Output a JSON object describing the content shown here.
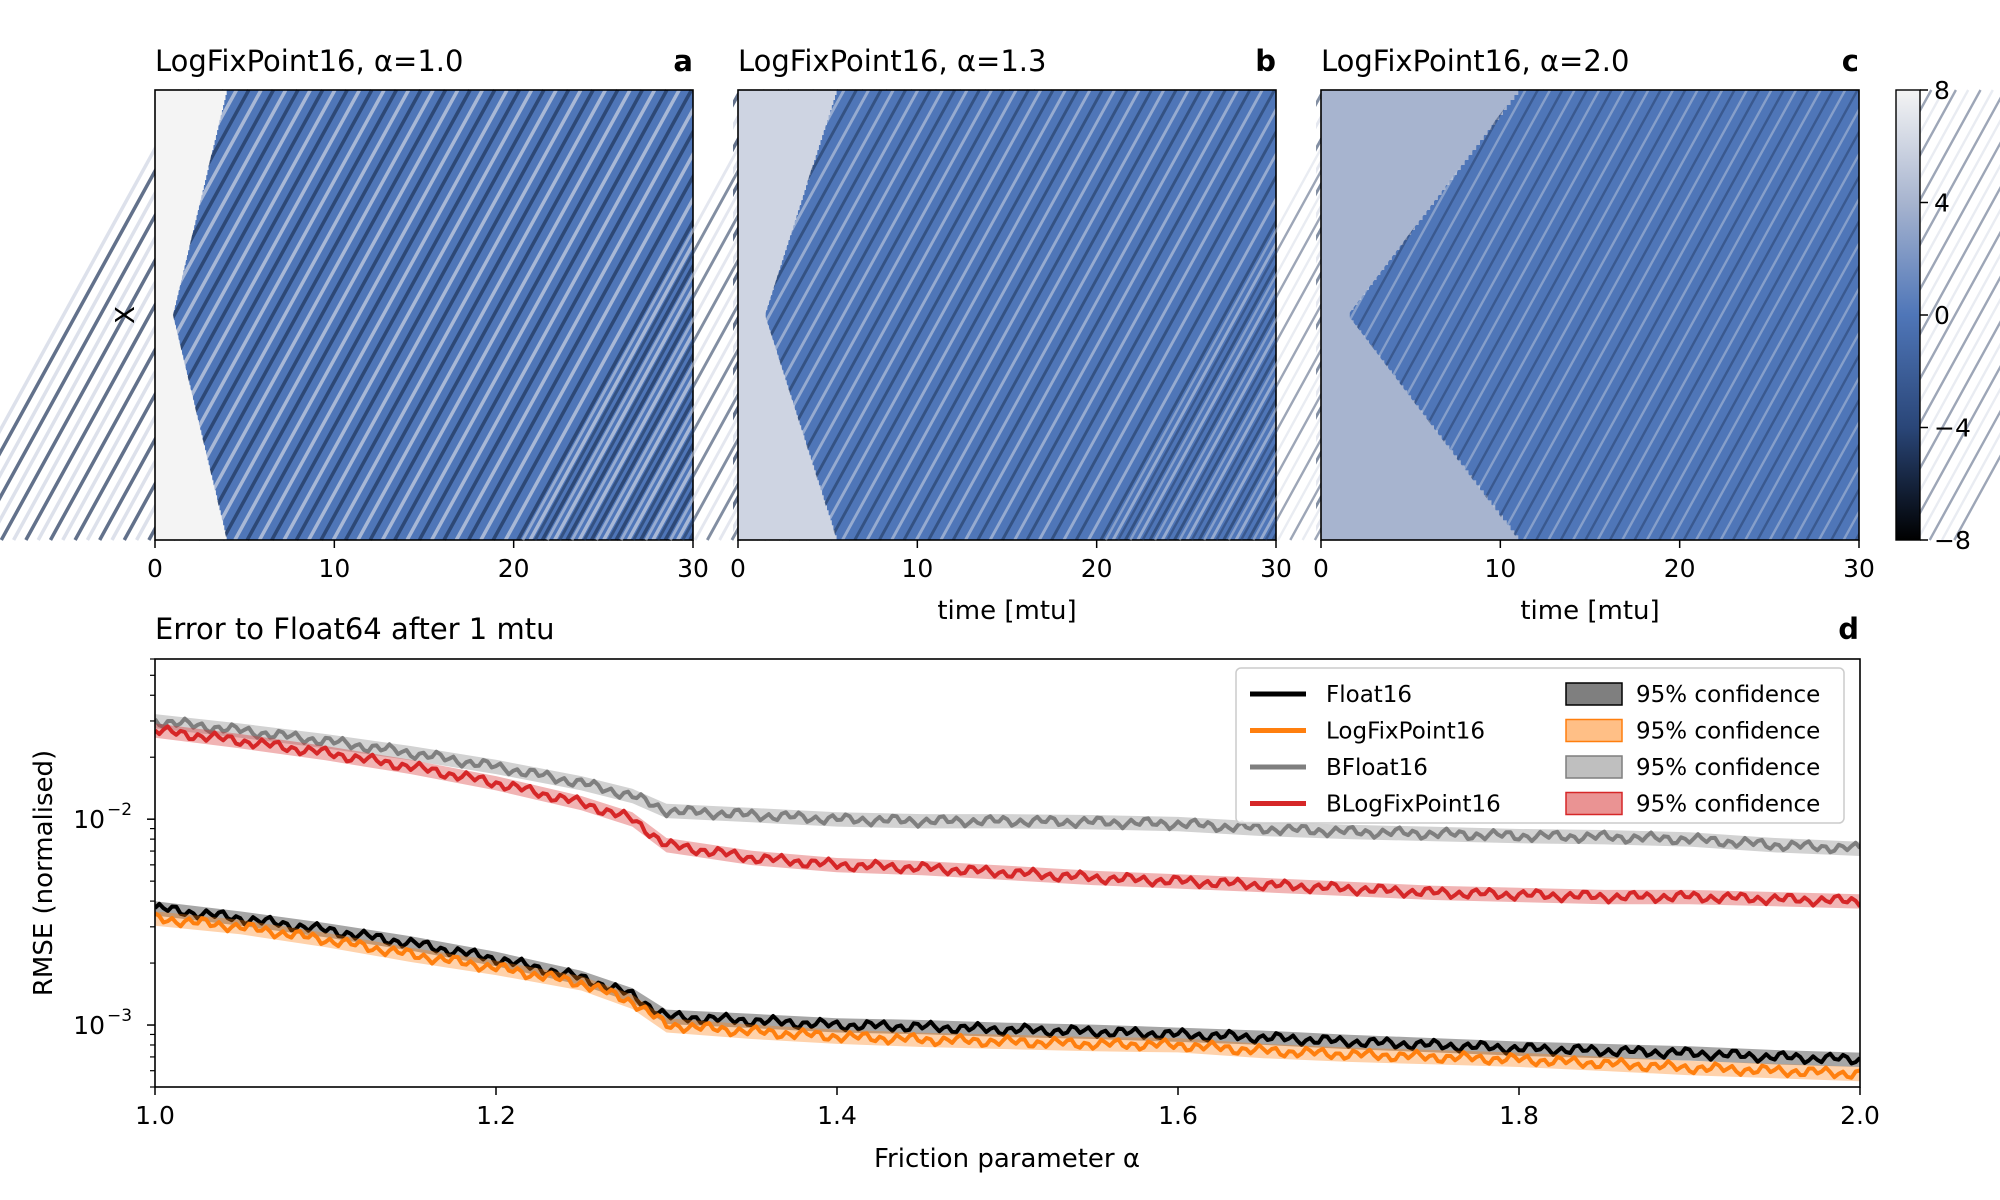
{
  "figure": {
    "panels_top": [
      {
        "title": "LogFixPoint16, α=1.0",
        "letter": "a"
      },
      {
        "title": "LogFixPoint16, α=1.3",
        "letter": "b"
      },
      {
        "title": "LogFixPoint16, α=2.0",
        "letter": "c"
      }
    ],
    "panel_bottom": {
      "title": "Error to Float64 after 1 mtu",
      "letter": "d"
    },
    "top_ylabel": "X",
    "top_xlabel": "time [mtu]",
    "top_xticks": [
      "0",
      "10",
      "20",
      "30"
    ],
    "colorbar_ticks": [
      "8",
      "4",
      "0",
      "−4",
      "−8"
    ],
    "bottom_xlabel": "Friction parameter α",
    "bottom_ylabel": "RMSE (normalised)",
    "bottom_xticks": [
      "1.0",
      "1.2",
      "1.4",
      "1.6",
      "1.8",
      "2.0"
    ],
    "bottom_yticks": [
      {
        "base": "10",
        "exp": "−2"
      },
      {
        "base": "10",
        "exp": "−3"
      }
    ],
    "legend_conf_label": "95% confidence"
  },
  "chart_data": [
    {
      "type": "heatmap",
      "title": "LogFixPoint16, α=1.0",
      "xlabel": "",
      "ylabel": "X",
      "xlim": [
        0,
        30
      ],
      "colorbar": {
        "range": [
          -8,
          8
        ],
        "ticks": [
          8,
          4,
          0,
          -4,
          -8
        ],
        "colors": [
          "#000000",
          "#4f76b8",
          "#f2f2f2"
        ]
      },
      "onset_time": {
        "at_center": 1,
        "at_edges": 4
      },
      "undisturbed_value": 8
    },
    {
      "type": "heatmap",
      "title": "LogFixPoint16, α=1.3",
      "xlabel": "time [mtu]",
      "ylabel": "",
      "xlim": [
        0,
        30
      ],
      "onset_time": {
        "at_center": 1.5,
        "at_edges": 5.5
      },
      "undisturbed_value": 6
    },
    {
      "type": "heatmap",
      "title": "LogFixPoint16, α=2.0",
      "xlabel": "time [mtu]",
      "ylabel": "",
      "xlim": [
        0,
        30
      ],
      "onset_time": {
        "at_center": 1.5,
        "at_edges": 11
      },
      "undisturbed_value": 4
    },
    {
      "type": "line",
      "title": "Error to Float64 after 1 mtu",
      "xlabel": "Friction parameter α",
      "ylabel": "RMSE (normalised)",
      "xlim": [
        1.0,
        2.0
      ],
      "ylim": [
        0.0005,
        0.06
      ],
      "yscale": "log",
      "legend_position": "upper right",
      "x": [
        1.0,
        1.05,
        1.1,
        1.15,
        1.2,
        1.25,
        1.28,
        1.3,
        1.35,
        1.4,
        1.45,
        1.5,
        1.55,
        1.6,
        1.65,
        1.7,
        1.75,
        1.8,
        1.85,
        1.9,
        1.95,
        2.0
      ],
      "series": [
        {
          "name": "Float16",
          "color": "#000000",
          "values": [
            0.0037,
            0.0033,
            0.0029,
            0.0025,
            0.0021,
            0.0017,
            0.0014,
            0.0011,
            0.00105,
            0.001,
            0.00098,
            0.00095,
            0.00093,
            0.0009,
            0.00087,
            0.00083,
            0.0008,
            0.00077,
            0.00075,
            0.00073,
            0.0007,
            0.00068
          ]
        },
        {
          "name": "LogFixPoint16",
          "color": "#ff7f0e",
          "values": [
            0.0033,
            0.003,
            0.0026,
            0.0022,
            0.0019,
            0.0016,
            0.0013,
            0.001,
            0.00093,
            0.00088,
            0.00085,
            0.00083,
            0.00081,
            0.0008,
            0.00075,
            0.00072,
            0.0007,
            0.00068,
            0.00065,
            0.00062,
            0.0006,
            0.00058
          ]
        },
        {
          "name": "BFloat16",
          "color": "#7f7f7f",
          "values": [
            0.03,
            0.027,
            0.024,
            0.021,
            0.018,
            0.015,
            0.013,
            0.011,
            0.0105,
            0.01,
            0.0098,
            0.0098,
            0.0097,
            0.0095,
            0.009,
            0.0087,
            0.0085,
            0.0083,
            0.0082,
            0.008,
            0.0075,
            0.0072
          ]
        },
        {
          "name": "BLogFixPoint16",
          "color": "#d62728",
          "values": [
            0.027,
            0.024,
            0.021,
            0.018,
            0.015,
            0.012,
            0.01,
            0.0075,
            0.0065,
            0.006,
            0.0058,
            0.0055,
            0.0052,
            0.005,
            0.0048,
            0.0046,
            0.0044,
            0.0043,
            0.0042,
            0.0042,
            0.0041,
            0.004
          ]
        }
      ],
      "confidence": [
        {
          "label": "95% confidence",
          "color": "#000000"
        },
        {
          "label": "95% confidence",
          "color": "#ff7f0e"
        },
        {
          "label": "95% confidence",
          "color": "#7f7f7f"
        },
        {
          "label": "95% confidence",
          "color": "#d62728"
        }
      ]
    }
  ]
}
